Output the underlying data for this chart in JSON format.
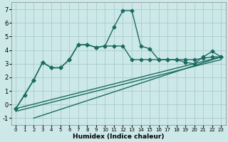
{
  "xlabel": "Humidex (Indice chaleur)",
  "bg_color": "#cce8e8",
  "line_color": "#1a6b60",
  "grid_color": "#aacccc",
  "xlim": [
    -0.5,
    23.5
  ],
  "ylim": [
    -1.5,
    7.5
  ],
  "xticks": [
    0,
    1,
    2,
    3,
    4,
    5,
    6,
    7,
    8,
    9,
    10,
    11,
    12,
    13,
    14,
    15,
    16,
    17,
    18,
    19,
    20,
    21,
    22,
    23
  ],
  "yticks": [
    -1,
    0,
    1,
    2,
    3,
    4,
    5,
    6,
    7
  ],
  "series1_x": [
    0,
    1,
    2,
    3,
    4,
    5,
    6,
    7,
    8,
    9,
    10,
    11,
    12,
    13,
    14,
    15,
    16,
    17,
    18,
    19,
    20,
    21,
    22,
    23
  ],
  "series1_y": [
    -0.3,
    0.7,
    1.8,
    3.1,
    2.7,
    2.7,
    3.3,
    4.4,
    4.4,
    4.2,
    4.3,
    5.7,
    6.9,
    6.9,
    4.3,
    4.1,
    3.3,
    3.3,
    3.3,
    3.1,
    3.0,
    3.5,
    3.9,
    3.5
  ],
  "series2_x": [
    0,
    2,
    3,
    4,
    5,
    6,
    7,
    8,
    9,
    10,
    11,
    12,
    13,
    14,
    15,
    16,
    17,
    18,
    19,
    20,
    21,
    22,
    23
  ],
  "series2_y": [
    -0.3,
    1.8,
    3.1,
    2.7,
    2.7,
    3.3,
    4.4,
    4.4,
    4.2,
    4.3,
    4.3,
    4.3,
    3.3,
    3.3,
    3.3,
    3.3,
    3.3,
    3.3,
    3.3,
    3.3,
    3.4,
    3.5,
    3.5
  ],
  "line1_x": [
    0,
    23
  ],
  "line1_y": [
    -0.3,
    3.5
  ],
  "line2_x": [
    0,
    23
  ],
  "line2_y": [
    -0.5,
    3.3
  ],
  "line3_x": [
    2,
    23
  ],
  "line3_y": [
    -1.0,
    3.5
  ],
  "marker": "D",
  "marker_size": 2.5,
  "linewidth": 1.0
}
